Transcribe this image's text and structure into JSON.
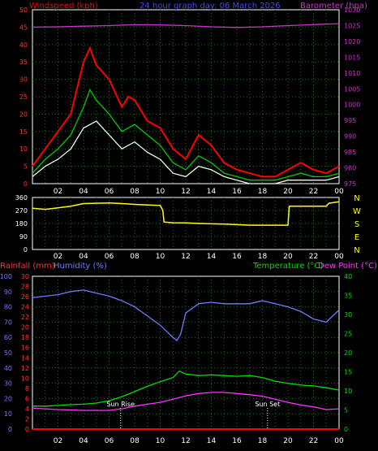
{
  "chart_data": [
    {
      "type": "line",
      "title": "24 hour graph day:  06 March 2026",
      "ylabel_left": "Windspeed (kph)",
      "ylabel_right": "Barometer (hpa)",
      "ylim_left": [
        0,
        50
      ],
      "ylim_right": [
        975,
        1030
      ],
      "yticks_left": [
        0,
        5,
        10,
        15,
        20,
        25,
        30,
        35,
        40,
        45,
        50
      ],
      "yticks_right": [
        975,
        980,
        985,
        990,
        995,
        1000,
        1005,
        1010,
        1015,
        1020,
        1025,
        1030
      ],
      "xticks": [
        "02",
        "04",
        "06",
        "08",
        "10",
        "12",
        "14",
        "16",
        "18",
        "20",
        "22",
        "00"
      ],
      "grid": true,
      "series": [
        {
          "role": "gust",
          "color": "#ff0000",
          "x": [
            0,
            1,
            2,
            3,
            4,
            4.5,
            5,
            6,
            7,
            7.5,
            8,
            9,
            10,
            11,
            12,
            13,
            14,
            15,
            16,
            17,
            18,
            19,
            20,
            21,
            22,
            23,
            24
          ],
          "values": [
            5,
            10,
            15,
            20,
            35,
            39,
            34,
            30,
            22,
            25,
            24,
            18,
            16,
            10,
            7,
            14,
            11,
            6,
            4,
            3,
            2,
            2,
            4,
            6,
            4,
            3,
            5
          ]
        },
        {
          "role": "average",
          "color": "#00cc00",
          "x": [
            0,
            1,
            2,
            3,
            4,
            4.5,
            5,
            6,
            7,
            8,
            9,
            10,
            11,
            12,
            13,
            14,
            15,
            16,
            17,
            18,
            19,
            20,
            21,
            22,
            23,
            24
          ],
          "values": [
            3,
            7,
            10,
            14,
            22,
            27,
            24,
            20,
            15,
            17,
            14,
            11,
            6,
            4,
            8,
            6,
            3,
            2,
            1,
            1,
            1,
            2,
            3,
            2,
            2,
            3
          ]
        },
        {
          "role": "speed",
          "color": "#e8ffe8",
          "x": [
            0,
            1,
            2,
            3,
            4,
            5,
            6,
            7,
            8,
            9,
            10,
            11,
            12,
            13,
            14,
            15,
            16,
            17,
            18,
            19,
            20,
            21,
            22,
            23,
            24
          ],
          "values": [
            2,
            5,
            7,
            10,
            16,
            18,
            14,
            10,
            12,
            9,
            7,
            3,
            2,
            5,
            4,
            2,
            1,
            0,
            0,
            0,
            1,
            1,
            1,
            1,
            2
          ]
        },
        {
          "role": "barometer",
          "color": "#cc33cc",
          "x": [
            0,
            2,
            4,
            6,
            8,
            10,
            12,
            14,
            16,
            18,
            20,
            22,
            24
          ],
          "values": [
            1024.5,
            1024.6,
            1024.8,
            1025.0,
            1025.3,
            1025.2,
            1025.0,
            1024.6,
            1024.4,
            1024.6,
            1025.0,
            1025.3,
            1025.6
          ]
        }
      ]
    },
    {
      "type": "line",
      "ylim": [
        0,
        360
      ],
      "yticks": [
        0,
        90,
        180,
        270,
        360
      ],
      "compass_labels": [
        "N",
        "W",
        "S",
        "E",
        "N"
      ],
      "xticks": [
        "02",
        "04",
        "06",
        "08",
        "10",
        "12",
        "14",
        "16",
        "18",
        "20",
        "22",
        "00"
      ],
      "grid": true,
      "series": [
        {
          "role": "direction",
          "color": "#ffff00",
          "x": [
            0,
            1,
            2,
            3,
            4,
            5,
            6,
            7,
            8,
            9,
            10,
            10.2,
            10.3,
            11,
            12,
            13,
            14,
            15,
            16,
            17,
            17.2,
            18,
            19,
            20,
            20.1,
            21,
            22,
            23,
            23.2,
            24
          ],
          "values": [
            285,
            278,
            288,
            300,
            318,
            320,
            322,
            318,
            312,
            308,
            305,
            270,
            190,
            185,
            184,
            180,
            178,
            176,
            172,
            168,
            168,
            168,
            168,
            168,
            300,
            300,
            300,
            300,
            320,
            330
          ]
        }
      ]
    },
    {
      "type": "line",
      "ylabel_left": "Rainfall (mm)",
      "ylabel_left2": "Humidity (%)",
      "ylabel_right": "Temperature (°C)",
      "ylabel_right2": "Dew Point (°C)",
      "ylim_humidity": [
        0,
        100
      ],
      "ylim_rain": [
        0,
        30
      ],
      "ylim_temp": [
        0,
        40
      ],
      "yticks_humidity": [
        0,
        10,
        20,
        30,
        40,
        50,
        60,
        70,
        80,
        90,
        100
      ],
      "yticks_rain": [
        0,
        2,
        4,
        6,
        8,
        10,
        12,
        14,
        16,
        18,
        20,
        22,
        24,
        26,
        28,
        30
      ],
      "yticks_temp": [
        0,
        5,
        10,
        15,
        20,
        25,
        30,
        35,
        40
      ],
      "xticks": [
        "02",
        "04",
        "06",
        "08",
        "10",
        "12",
        "14",
        "16",
        "18",
        "20",
        "22",
        "00"
      ],
      "grid": true,
      "annotations": [
        {
          "label": "Sun Rise",
          "x": 6.9
        },
        {
          "label": "Sun Set",
          "x": 18.4
        }
      ],
      "series": [
        {
          "role": "humidity",
          "color": "#7777ff",
          "x": [
            0,
            1,
            2,
            3,
            4,
            5,
            6,
            7,
            8,
            9,
            10,
            10.5,
            11,
            11.3,
            11.6,
            12,
            13,
            14,
            15,
            16,
            17,
            18,
            19,
            20,
            21,
            22,
            23,
            24
          ],
          "values": [
            86,
            87,
            88,
            90,
            91,
            89,
            87,
            84,
            80,
            74,
            68,
            64,
            60,
            58,
            62,
            76,
            82,
            83,
            82,
            82,
            82,
            84,
            82,
            80,
            77,
            72,
            70,
            78
          ]
        },
        {
          "role": "temperature",
          "color": "#00dd00",
          "x": [
            0,
            1,
            2,
            3,
            4,
            5,
            6,
            7,
            8,
            9,
            10,
            11,
            11.5,
            12,
            13,
            14,
            15,
            16,
            17,
            18,
            19,
            20,
            21,
            22,
            23,
            24
          ],
          "values": [
            6,
            6,
            6.2,
            6.4,
            6.5,
            6.8,
            7.4,
            8.5,
            9.8,
            11.2,
            12.4,
            13.5,
            15.2,
            14.4,
            14,
            14.2,
            14,
            13.8,
            14,
            13.5,
            12.5,
            12,
            11.5,
            11.3,
            10.8,
            10.2
          ]
        },
        {
          "role": "dewpoint",
          "color": "#ff33ff",
          "x": [
            0,
            1,
            2,
            3,
            4,
            5,
            6,
            7,
            8,
            9,
            10,
            11,
            12,
            13,
            14,
            15,
            16,
            17,
            18,
            19,
            20,
            21,
            22,
            23,
            24
          ],
          "values": [
            5.5,
            5.3,
            5.1,
            5,
            4.9,
            4.9,
            4.9,
            5.3,
            6,
            6.5,
            7,
            7.8,
            8.7,
            9.3,
            9.6,
            9.6,
            9.3,
            9,
            8.6,
            7.8,
            7,
            6.3,
            5.8,
            5.1,
            5.3
          ]
        },
        {
          "role": "rainfall",
          "color": "#ff0000",
          "x": [
            0,
            24
          ],
          "values": [
            0,
            0
          ]
        }
      ]
    }
  ]
}
